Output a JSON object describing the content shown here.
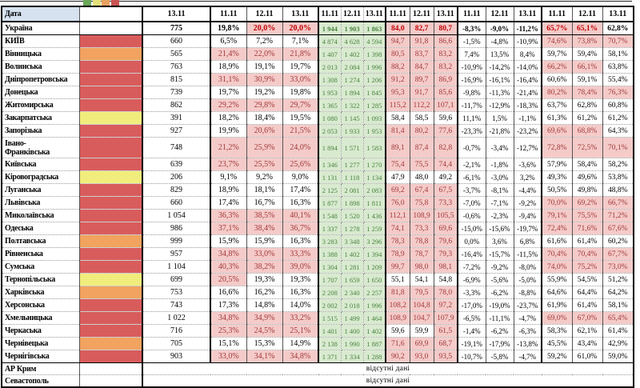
{
  "colors": {
    "red": "#D95C5C",
    "orange": "#F1A35F",
    "yellow": "#F1ED7C",
    "none": "#FFFFFF",
    "pink": "#F4CBC9",
    "green_bg": "#D8EACF",
    "green_text": "#49823F",
    "dark_red_text": "#A13939",
    "ukraine_red_text": "#C00000",
    "header_blue": "#D6E2F0",
    "legend_swatches": [
      "#6BA85B",
      "#E3E07B",
      "#E8A15F",
      "#C95454"
    ]
  },
  "header": {
    "date_label": "Дата",
    "single_col_date": "13.11",
    "group_dates": [
      "11.11",
      "12.11",
      "13.11"
    ],
    "group_count": 5
  },
  "no_data_text": "відсутні дані",
  "rows": [
    {
      "name": "Україна",
      "indicator": "none",
      "bold": true,
      "c1": "775",
      "g1": [
        "19,8%",
        "20,0%",
        "20,0%"
      ],
      "g1_hl": [
        0,
        1,
        1
      ],
      "g2": [
        "1 944",
        "1 903",
        "1 863"
      ],
      "g3": [
        "84,0",
        "82,7",
        "80,7"
      ],
      "g3_hl": [
        1,
        1,
        1
      ],
      "g4": [
        "-8,3%",
        "-9,0%",
        "-11,2%"
      ],
      "g5": [
        "65,7%",
        "65,1%",
        "62,8%"
      ],
      "g5_hl": [
        1,
        1,
        0
      ]
    },
    {
      "name": "КИЇВ",
      "indicator": "red",
      "c1": "660",
      "g1": [
        "6,5%",
        "7,2%",
        "7,1%"
      ],
      "g1_hl": [
        0,
        0,
        0
      ],
      "g2": [
        "4 874",
        "4 628",
        "4 594"
      ],
      "g3": [
        "94,7",
        "91,8",
        "86,6"
      ],
      "g3_hl": [
        1,
        1,
        1
      ],
      "g4": [
        "-1,5%",
        "-4,8%",
        "-10,9%"
      ],
      "g5": [
        "74,6%",
        "73,8%",
        "70,7%"
      ],
      "g5_hl": [
        1,
        1,
        1
      ]
    },
    {
      "name": "Вінницька",
      "indicator": "orange",
      "c1": "565",
      "g1": [
        "21,4%",
        "22,0%",
        "21,8%"
      ],
      "g1_hl": [
        1,
        1,
        1
      ],
      "g2": [
        "1 407",
        "1 402",
        "1 398"
      ],
      "g3": [
        "80,5",
        "83,7",
        "83,2"
      ],
      "g3_hl": [
        1,
        1,
        1
      ],
      "g4": [
        "7,4%",
        "13,5%",
        "8,4%"
      ],
      "g5": [
        "59,7%",
        "59,4%",
        "58,1%"
      ],
      "g5_hl": [
        0,
        0,
        0
      ]
    },
    {
      "name": "Волинська",
      "indicator": "red",
      "c1": "763",
      "g1": [
        "18,9%",
        "19,1%",
        "19,7%"
      ],
      "g1_hl": [
        0,
        0,
        0
      ],
      "g2": [
        "2 013",
        "2 084",
        "1 996"
      ],
      "g3": [
        "88,2",
        "84,7",
        "83,2"
      ],
      "g3_hl": [
        1,
        1,
        1
      ],
      "g4": [
        "-10,9%",
        "-14,2%",
        "-14,0%"
      ],
      "g5": [
        "66,2%",
        "66,1%",
        "63,8%"
      ],
      "g5_hl": [
        1,
        1,
        0
      ]
    },
    {
      "name": "Дніпропетровська",
      "indicator": "red",
      "c1": "815",
      "g1": [
        "31,1%",
        "30,9%",
        "33,0%"
      ],
      "g1_hl": [
        1,
        1,
        1
      ],
      "g2": [
        "1 308",
        "1 274",
        "1 206"
      ],
      "g3": [
        "91,2",
        "89,7",
        "86,9"
      ],
      "g3_hl": [
        1,
        1,
        1
      ],
      "g4": [
        "-16,9%",
        "-16,1%",
        "-16,4%"
      ],
      "g5": [
        "60,6%",
        "59,1%",
        "55,4%"
      ],
      "g5_hl": [
        0,
        0,
        0
      ]
    },
    {
      "name": "Донецька",
      "indicator": "red",
      "c1": "739",
      "g1": [
        "19,7%",
        "19,2%",
        "19,8%"
      ],
      "g1_hl": [
        0,
        0,
        0
      ],
      "g2": [
        "1 953",
        "1 894",
        "1 845"
      ],
      "g3": [
        "95,3",
        "91,7",
        "85,6"
      ],
      "g3_hl": [
        1,
        1,
        1
      ],
      "g4": [
        "-9,8%",
        "-11,3%",
        "-21,4%"
      ],
      "g5": [
        "80,2%",
        "78,4%",
        "76,3%"
      ],
      "g5_hl": [
        1,
        1,
        1
      ]
    },
    {
      "name": "Житомирська",
      "indicator": "red",
      "c1": "862",
      "g1": [
        "29,2%",
        "29,8%",
        "29,7%"
      ],
      "g1_hl": [
        1,
        1,
        1
      ],
      "g2": [
        "1 365",
        "1 322",
        "1 285"
      ],
      "g3": [
        "115,2",
        "112,2",
        "107,1"
      ],
      "g3_hl": [
        1,
        1,
        1
      ],
      "g4": [
        "-11,7%",
        "-12,9%",
        "-18,3%"
      ],
      "g5": [
        "63,7%",
        "62,8%",
        "60,8%"
      ],
      "g5_hl": [
        0,
        0,
        0
      ]
    },
    {
      "name": "Закарпатська",
      "indicator": "yellow",
      "c1": "391",
      "g1": [
        "18,2%",
        "18,4%",
        "19,5%"
      ],
      "g1_hl": [
        0,
        0,
        0
      ],
      "g2": [
        "1 080",
        "1 145",
        "1 093"
      ],
      "g3": [
        "58,4",
        "58,5",
        "59,6"
      ],
      "g3_hl": [
        0,
        0,
        0
      ],
      "g4": [
        "11,1%",
        "1,5%",
        "-1,1%"
      ],
      "g5": [
        "61,3%",
        "61,2%",
        "61,2%"
      ],
      "g5_hl": [
        0,
        0,
        0
      ]
    },
    {
      "name": "Запорізька",
      "indicator": "red",
      "c1": "927",
      "g1": [
        "19,9%",
        "20,6%",
        "21,5%"
      ],
      "g1_hl": [
        0,
        1,
        1
      ],
      "g2": [
        "2 053",
        "1 933",
        "1 953"
      ],
      "g3": [
        "81,4",
        "80,2",
        "77,6"
      ],
      "g3_hl": [
        1,
        1,
        1
      ],
      "g4": [
        "-23,3%",
        "-21,8%",
        "-23,2%"
      ],
      "g5": [
        "69,6%",
        "68,8%",
        "64,3%"
      ],
      "g5_hl": [
        1,
        1,
        0
      ]
    },
    {
      "name": "Івано-\nФранківська",
      "indicator": "red",
      "tall": true,
      "c1": "748",
      "g1": [
        "21,2%",
        "25,9%",
        "24,0%"
      ],
      "g1_hl": [
        1,
        1,
        1
      ],
      "g2": [
        "1 894",
        "1 571",
        "1 583"
      ],
      "g3": [
        "89,1",
        "87,4",
        "82,8"
      ],
      "g3_hl": [
        1,
        1,
        1
      ],
      "g4": [
        "-0,7%",
        "-3,4%",
        "-12,7%"
      ],
      "g5": [
        "72,8%",
        "72,5%",
        "70,1%"
      ],
      "g5_hl": [
        1,
        1,
        1
      ]
    },
    {
      "name": "Київська",
      "indicator": "red",
      "c1": "639",
      "g1": [
        "23,7%",
        "25,5%",
        "25,6%"
      ],
      "g1_hl": [
        1,
        1,
        1
      ],
      "g2": [
        "1 346",
        "1 277",
        "1 270"
      ],
      "g3": [
        "75,4",
        "75,5",
        "74,4"
      ],
      "g3_hl": [
        1,
        1,
        1
      ],
      "g4": [
        "-2,1%",
        "-1,8%",
        "-3,6%"
      ],
      "g5": [
        "57,9%",
        "58,4%",
        "58,2%"
      ],
      "g5_hl": [
        0,
        0,
        0
      ]
    },
    {
      "name": "Кіровоградська",
      "indicator": "yellow",
      "c1": "206",
      "g1": [
        "9,1%",
        "9,2%",
        "9,0%"
      ],
      "g1_hl": [
        0,
        0,
        0
      ],
      "g2": [
        "1 131",
        "1 118",
        "1 134"
      ],
      "g3": [
        "47,9",
        "48,0",
        "49,2"
      ],
      "g3_hl": [
        0,
        0,
        0
      ],
      "g4": [
        "-6,1%",
        "-3,0%",
        "3,2%"
      ],
      "g5": [
        "49,3%",
        "49,6%",
        "53,8%"
      ],
      "g5_hl": [
        0,
        0,
        0
      ]
    },
    {
      "name": "Луганська",
      "indicator": "red",
      "c1": "829",
      "g1": [
        "18,9%",
        "18,1%",
        "17,4%"
      ],
      "g1_hl": [
        0,
        0,
        0
      ],
      "g2": [
        "2 125",
        "2 081",
        "2 083"
      ],
      "g3": [
        "69,2",
        "67,4",
        "67,5"
      ],
      "g3_hl": [
        1,
        1,
        1
      ],
      "g4": [
        "-3,7%",
        "-8,1%",
        "-4,4%"
      ],
      "g5": [
        "50,5%",
        "49,8%",
        "48,8%"
      ],
      "g5_hl": [
        0,
        0,
        0
      ]
    },
    {
      "name": "Львівська",
      "indicator": "red",
      "c1": "660",
      "g1": [
        "17,4%",
        "16,7%",
        "16,3%"
      ],
      "g1_hl": [
        0,
        0,
        0
      ],
      "g2": [
        "1 877",
        "1 898",
        "1 811"
      ],
      "g3": [
        "76,0",
        "75,8",
        "73,3"
      ],
      "g3_hl": [
        1,
        1,
        1
      ],
      "g4": [
        "-7,0%",
        "-7,1%",
        "-9,2%"
      ],
      "g5": [
        "70,0%",
        "69,2%",
        "66,7%"
      ],
      "g5_hl": [
        1,
        1,
        1
      ]
    },
    {
      "name": "Миколаївська",
      "indicator": "red",
      "c1": "1 054",
      "g1": [
        "36,3%",
        "38,5%",
        "40,1%"
      ],
      "g1_hl": [
        1,
        1,
        1
      ],
      "g2": [
        "1 548",
        "1 520",
        "1 436"
      ],
      "g3": [
        "112,1",
        "108,9",
        "105,5"
      ],
      "g3_hl": [
        1,
        1,
        1
      ],
      "g4": [
        "-0,6%",
        "-2,3%",
        "-9,4%"
      ],
      "g5": [
        "79,1%",
        "75,5%",
        "71,2%"
      ],
      "g5_hl": [
        1,
        1,
        1
      ]
    },
    {
      "name": "Одеська",
      "indicator": "red",
      "c1": "986",
      "g1": [
        "37,1%",
        "38,4%",
        "36,7%"
      ],
      "g1_hl": [
        1,
        1,
        1
      ],
      "g2": [
        "1 337",
        "1 278",
        "1 259"
      ],
      "g3": [
        "74,1",
        "73,3",
        "69,6"
      ],
      "g3_hl": [
        1,
        1,
        1
      ],
      "g4": [
        "-15,0%",
        "-15,6%",
        "-19,7%"
      ],
      "g5": [
        "72,4%",
        "71,6%",
        "67,6%"
      ],
      "g5_hl": [
        1,
        1,
        1
      ]
    },
    {
      "name": "Полтавська",
      "indicator": "orange",
      "c1": "999",
      "g1": [
        "15,9%",
        "15,9%",
        "16,3%"
      ],
      "g1_hl": [
        0,
        0,
        0
      ],
      "g2": [
        "3 283",
        "3 348",
        "3 296"
      ],
      "g3": [
        "78,3",
        "78,8",
        "79,6"
      ],
      "g3_hl": [
        1,
        1,
        1
      ],
      "g4": [
        "0,0%",
        "3,6%",
        "6,8%"
      ],
      "g5": [
        "61,6%",
        "61,4%",
        "60,2%"
      ],
      "g5_hl": [
        0,
        0,
        0
      ]
    },
    {
      "name": "Рівненська",
      "indicator": "red",
      "c1": "957",
      "g1": [
        "34,8%",
        "33,0%",
        "33,3%"
      ],
      "g1_hl": [
        1,
        1,
        1
      ],
      "g2": [
        "1 388",
        "1 402",
        "1 394"
      ],
      "g3": [
        "78,9",
        "78,7",
        "79,3"
      ],
      "g3_hl": [
        1,
        1,
        1
      ],
      "g4": [
        "-16,4%",
        "-15,7%",
        "-11,5%"
      ],
      "g5": [
        "70,4%",
        "70,4%",
        "67,7%"
      ],
      "g5_hl": [
        1,
        1,
        1
      ]
    },
    {
      "name": "Сумська",
      "indicator": "red",
      "c1": "1 104",
      "g1": [
        "40,3%",
        "38,2%",
        "39,0%"
      ],
      "g1_hl": [
        1,
        1,
        1
      ],
      "g2": [
        "1 304",
        "1 281",
        "1 209"
      ],
      "g3": [
        "99,7",
        "98,0",
        "98,1"
      ],
      "g3_hl": [
        1,
        1,
        1
      ],
      "g4": [
        "-7,2%",
        "-9,2%",
        "-8,0%"
      ],
      "g5": [
        "74,0%",
        "75,2%",
        "73,0%"
      ],
      "g5_hl": [
        1,
        1,
        1
      ]
    },
    {
      "name": "Тернопільська",
      "indicator": "yellow",
      "c1": "699",
      "g1": [
        "20,5%",
        "19,3%",
        "19,3%"
      ],
      "g1_hl": [
        1,
        0,
        0
      ],
      "g2": [
        "1 707",
        "1 659",
        "1 650"
      ],
      "g3": [
        "55,1",
        "54,1",
        "54,8"
      ],
      "g3_hl": [
        0,
        0,
        0
      ],
      "g4": [
        "-6,9%",
        "-5,6%",
        "-5,0%"
      ],
      "g5": [
        "55,9%",
        "54,5%",
        "51,2%"
      ],
      "g5_hl": [
        0,
        0,
        0
      ]
    },
    {
      "name": "Харківська",
      "indicator": "orange",
      "c1": "753",
      "g1": [
        "16,6%",
        "16,2%",
        "16,3%"
      ],
      "g1_hl": [
        0,
        0,
        0
      ],
      "g2": [
        "2 208",
        "2 340",
        "2 257"
      ],
      "g3": [
        "81,8",
        "79,5",
        "78,0"
      ],
      "g3_hl": [
        1,
        1,
        1
      ],
      "g4": [
        "-3,3%",
        "-6,2%",
        "-8,8%"
      ],
      "g5": [
        "64,6%",
        "64,4%",
        "64,2%"
      ],
      "g5_hl": [
        0,
        0,
        0
      ]
    },
    {
      "name": "Херсонська",
      "indicator": "red",
      "c1": "743",
      "g1": [
        "17,3%",
        "14,8%",
        "14,0%"
      ],
      "g1_hl": [
        0,
        0,
        0
      ],
      "g2": [
        "2 002",
        "2 018",
        "1 996"
      ],
      "g3": [
        "108,2",
        "104,8",
        "97,2"
      ],
      "g3_hl": [
        1,
        1,
        1
      ],
      "g4": [
        "-17,0%",
        "-19,0%",
        "-23,7%"
      ],
      "g5": [
        "61,9%",
        "61,4%",
        "58,1%"
      ],
      "g5_hl": [
        0,
        0,
        0
      ]
    },
    {
      "name": "Хмельницька",
      "indicator": "red",
      "c1": "1 022",
      "g1": [
        "34,8%",
        "34,9%",
        "33,2%"
      ],
      "g1_hl": [
        1,
        1,
        1
      ],
      "g2": [
        "1 515",
        "1 499",
        "1 464"
      ],
      "g3": [
        "108,9",
        "104,7",
        "107,9"
      ],
      "g3_hl": [
        1,
        1,
        1
      ],
      "g4": [
        "-6,5%",
        "-11,1%",
        "-4,7%"
      ],
      "g5": [
        "69,0%",
        "67,0%",
        "65,4%"
      ],
      "g5_hl": [
        1,
        1,
        1
      ]
    },
    {
      "name": "Черкаська",
      "indicator": "red",
      "c1": "716",
      "g1": [
        "25,3%",
        "24,5%",
        "25,1%"
      ],
      "g1_hl": [
        1,
        1,
        1
      ],
      "g2": [
        "1 401",
        "1 400",
        "1 402"
      ],
      "g3": [
        "59,6",
        "59,9",
        "61,5"
      ],
      "g3_hl": [
        0,
        0,
        1
      ],
      "g4": [
        "-1,4%",
        "-6,2%",
        "-6,3%"
      ],
      "g5": [
        "58,3%",
        "62,1%",
        "61,4%"
      ],
      "g5_hl": [
        0,
        0,
        0
      ]
    },
    {
      "name": "Чернівецька",
      "indicator": "orange",
      "c1": "705",
      "g1": [
        "15,1%",
        "15,3%",
        "14,9%"
      ],
      "g1_hl": [
        0,
        0,
        0
      ],
      "g2": [
        "2 138",
        "1 990",
        "1 887"
      ],
      "g3": [
        "71,6",
        "69,9",
        "68,7"
      ],
      "g3_hl": [
        1,
        1,
        1
      ],
      "g4": [
        "-19,1%",
        "-17,9%",
        "-13,8%"
      ],
      "g5": [
        "45,5%",
        "43,4%",
        "42,9%"
      ],
      "g5_hl": [
        0,
        0,
        0
      ]
    },
    {
      "name": "Чернігівська",
      "indicator": "red",
      "last": true,
      "c1": "903",
      "g1": [
        "33,0%",
        "34,1%",
        "34,8%"
      ],
      "g1_hl": [
        1,
        1,
        1
      ],
      "g2": [
        "1 371",
        "1 334",
        "1 288"
      ],
      "g3": [
        "90,2",
        "93,0",
        "93,5"
      ],
      "g3_hl": [
        1,
        1,
        1
      ],
      "g4": [
        "-10,7%",
        "-5,8%",
        "-4,7%"
      ],
      "g5": [
        "59,2%",
        "61,0%",
        "59,0%"
      ],
      "g5_hl": [
        0,
        0,
        0
      ]
    }
  ],
  "no_data_rows": [
    {
      "name": "АР Крим"
    },
    {
      "name": "Севастополь"
    }
  ]
}
